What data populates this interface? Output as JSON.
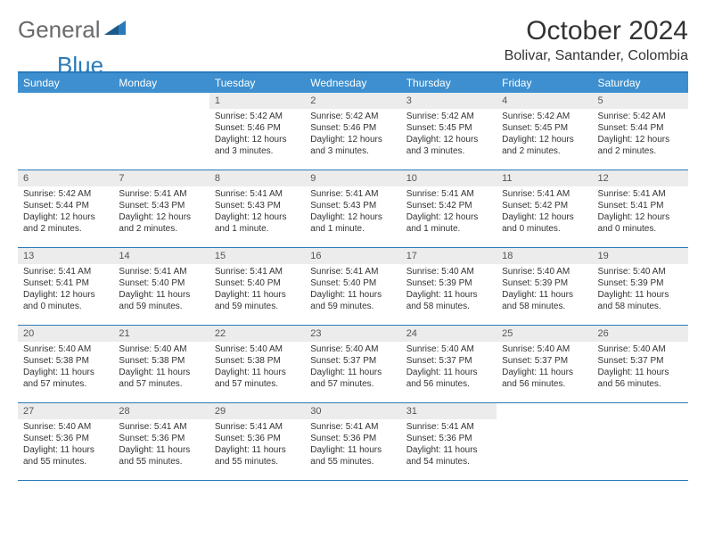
{
  "logo": {
    "text1": "General",
    "text2": "Blue"
  },
  "title": "October 2024",
  "location": "Bolivar, Santander, Colombia",
  "dayNames": [
    "Sunday",
    "Monday",
    "Tuesday",
    "Wednesday",
    "Thursday",
    "Friday",
    "Saturday"
  ],
  "colors": {
    "headerBg": "#3d8fcf",
    "borderBlue": "#2a7ab9",
    "dayNumBg": "#ececec",
    "logoGray": "#6a6a6a",
    "logoBlue": "#2a7ab9"
  },
  "weeks": [
    [
      null,
      null,
      {
        "num": "1",
        "sunrise": "5:42 AM",
        "sunset": "5:46 PM",
        "daylight": "12 hours and 3 minutes."
      },
      {
        "num": "2",
        "sunrise": "5:42 AM",
        "sunset": "5:46 PM",
        "daylight": "12 hours and 3 minutes."
      },
      {
        "num": "3",
        "sunrise": "5:42 AM",
        "sunset": "5:45 PM",
        "daylight": "12 hours and 3 minutes."
      },
      {
        "num": "4",
        "sunrise": "5:42 AM",
        "sunset": "5:45 PM",
        "daylight": "12 hours and 2 minutes."
      },
      {
        "num": "5",
        "sunrise": "5:42 AM",
        "sunset": "5:44 PM",
        "daylight": "12 hours and 2 minutes."
      }
    ],
    [
      {
        "num": "6",
        "sunrise": "5:42 AM",
        "sunset": "5:44 PM",
        "daylight": "12 hours and 2 minutes."
      },
      {
        "num": "7",
        "sunrise": "5:41 AM",
        "sunset": "5:43 PM",
        "daylight": "12 hours and 2 minutes."
      },
      {
        "num": "8",
        "sunrise": "5:41 AM",
        "sunset": "5:43 PM",
        "daylight": "12 hours and 1 minute."
      },
      {
        "num": "9",
        "sunrise": "5:41 AM",
        "sunset": "5:43 PM",
        "daylight": "12 hours and 1 minute."
      },
      {
        "num": "10",
        "sunrise": "5:41 AM",
        "sunset": "5:42 PM",
        "daylight": "12 hours and 1 minute."
      },
      {
        "num": "11",
        "sunrise": "5:41 AM",
        "sunset": "5:42 PM",
        "daylight": "12 hours and 0 minutes."
      },
      {
        "num": "12",
        "sunrise": "5:41 AM",
        "sunset": "5:41 PM",
        "daylight": "12 hours and 0 minutes."
      }
    ],
    [
      {
        "num": "13",
        "sunrise": "5:41 AM",
        "sunset": "5:41 PM",
        "daylight": "12 hours and 0 minutes."
      },
      {
        "num": "14",
        "sunrise": "5:41 AM",
        "sunset": "5:40 PM",
        "daylight": "11 hours and 59 minutes."
      },
      {
        "num": "15",
        "sunrise": "5:41 AM",
        "sunset": "5:40 PM",
        "daylight": "11 hours and 59 minutes."
      },
      {
        "num": "16",
        "sunrise": "5:41 AM",
        "sunset": "5:40 PM",
        "daylight": "11 hours and 59 minutes."
      },
      {
        "num": "17",
        "sunrise": "5:40 AM",
        "sunset": "5:39 PM",
        "daylight": "11 hours and 58 minutes."
      },
      {
        "num": "18",
        "sunrise": "5:40 AM",
        "sunset": "5:39 PM",
        "daylight": "11 hours and 58 minutes."
      },
      {
        "num": "19",
        "sunrise": "5:40 AM",
        "sunset": "5:39 PM",
        "daylight": "11 hours and 58 minutes."
      }
    ],
    [
      {
        "num": "20",
        "sunrise": "5:40 AM",
        "sunset": "5:38 PM",
        "daylight": "11 hours and 57 minutes."
      },
      {
        "num": "21",
        "sunrise": "5:40 AM",
        "sunset": "5:38 PM",
        "daylight": "11 hours and 57 minutes."
      },
      {
        "num": "22",
        "sunrise": "5:40 AM",
        "sunset": "5:38 PM",
        "daylight": "11 hours and 57 minutes."
      },
      {
        "num": "23",
        "sunrise": "5:40 AM",
        "sunset": "5:37 PM",
        "daylight": "11 hours and 57 minutes."
      },
      {
        "num": "24",
        "sunrise": "5:40 AM",
        "sunset": "5:37 PM",
        "daylight": "11 hours and 56 minutes."
      },
      {
        "num": "25",
        "sunrise": "5:40 AM",
        "sunset": "5:37 PM",
        "daylight": "11 hours and 56 minutes."
      },
      {
        "num": "26",
        "sunrise": "5:40 AM",
        "sunset": "5:37 PM",
        "daylight": "11 hours and 56 minutes."
      }
    ],
    [
      {
        "num": "27",
        "sunrise": "5:40 AM",
        "sunset": "5:36 PM",
        "daylight": "11 hours and 55 minutes."
      },
      {
        "num": "28",
        "sunrise": "5:41 AM",
        "sunset": "5:36 PM",
        "daylight": "11 hours and 55 minutes."
      },
      {
        "num": "29",
        "sunrise": "5:41 AM",
        "sunset": "5:36 PM",
        "daylight": "11 hours and 55 minutes."
      },
      {
        "num": "30",
        "sunrise": "5:41 AM",
        "sunset": "5:36 PM",
        "daylight": "11 hours and 55 minutes."
      },
      {
        "num": "31",
        "sunrise": "5:41 AM",
        "sunset": "5:36 PM",
        "daylight": "11 hours and 54 minutes."
      },
      null,
      null
    ]
  ],
  "labels": {
    "sunrise": "Sunrise:",
    "sunset": "Sunset:",
    "daylight": "Daylight:"
  }
}
